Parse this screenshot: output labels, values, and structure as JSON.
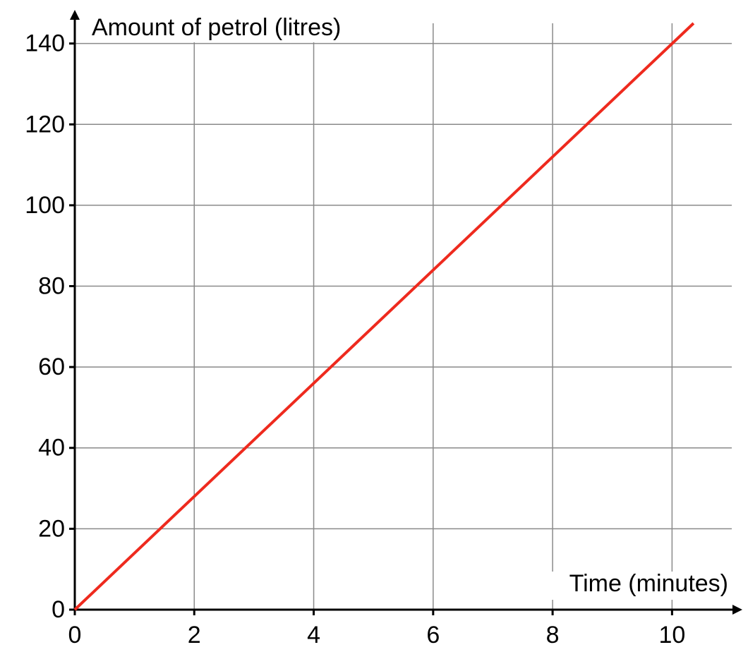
{
  "chart_data": {
    "type": "line",
    "x_label": "Time (minutes)",
    "y_label": "Amount of petrol (litres)",
    "x": [
      0,
      10.36
    ],
    "series": [
      {
        "color": "#ee2a1e",
        "values": [
          0,
          145
        ]
      }
    ],
    "xlim": [
      0,
      11
    ],
    "xticks": [
      0,
      2,
      4,
      6,
      8,
      10
    ],
    "ylim": [
      0,
      145
    ],
    "yticks": [
      0,
      20,
      40,
      60,
      80,
      100,
      120,
      140
    ],
    "grid": true
  }
}
